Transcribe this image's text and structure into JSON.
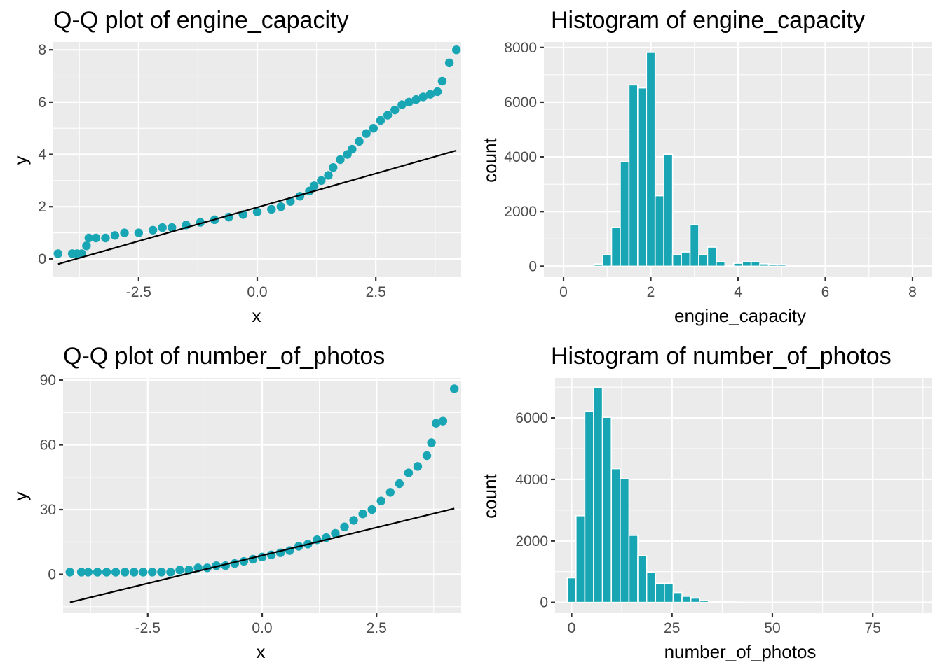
{
  "colors": {
    "points": "#18a5b4",
    "bars_fill": "#18a5b4",
    "bars_outline": "#ffffff",
    "ref_line": "#000000",
    "panel_bg": "#ebebeb",
    "grid": "#ffffff"
  },
  "chart_data": [
    {
      "id": "qq_engine",
      "type": "scatter",
      "title": "Q-Q plot of engine_capacity",
      "xlabel": "x",
      "ylabel": "y",
      "xlim": [
        -4.3,
        4.3
      ],
      "ylim": [
        -0.7,
        8.3
      ],
      "xticks": [
        -2.5,
        0.0,
        2.5
      ],
      "xtick_labels": [
        "-2.5",
        "0.0",
        "2.5"
      ],
      "yticks": [
        0,
        2,
        4,
        6,
        8
      ],
      "ytick_labels": [
        "0",
        "2",
        "4",
        "6",
        "8"
      ],
      "grid": true,
      "points": [
        [
          -4.2,
          0.2
        ],
        [
          -3.9,
          0.2
        ],
        [
          -3.8,
          0.2
        ],
        [
          -3.7,
          0.2
        ],
        [
          -3.6,
          0.5
        ],
        [
          -3.55,
          0.8
        ],
        [
          -3.4,
          0.8
        ],
        [
          -3.2,
          0.8
        ],
        [
          -3.0,
          0.9
        ],
        [
          -2.8,
          1.0
        ],
        [
          -2.5,
          1.0
        ],
        [
          -2.2,
          1.1
        ],
        [
          -2.0,
          1.2
        ],
        [
          -1.8,
          1.2
        ],
        [
          -1.5,
          1.3
        ],
        [
          -1.2,
          1.4
        ],
        [
          -0.9,
          1.5
        ],
        [
          -0.6,
          1.6
        ],
        [
          -0.3,
          1.7
        ],
        [
          0.0,
          1.8
        ],
        [
          0.3,
          1.9
        ],
        [
          0.5,
          2.0
        ],
        [
          0.7,
          2.2
        ],
        [
          0.9,
          2.4
        ],
        [
          1.1,
          2.6
        ],
        [
          1.2,
          2.8
        ],
        [
          1.35,
          3.0
        ],
        [
          1.5,
          3.2
        ],
        [
          1.6,
          3.5
        ],
        [
          1.75,
          3.8
        ],
        [
          1.9,
          4.0
        ],
        [
          2.0,
          4.2
        ],
        [
          2.15,
          4.5
        ],
        [
          2.3,
          4.8
        ],
        [
          2.45,
          5.0
        ],
        [
          2.6,
          5.3
        ],
        [
          2.75,
          5.5
        ],
        [
          2.9,
          5.7
        ],
        [
          3.05,
          5.9
        ],
        [
          3.2,
          6.0
        ],
        [
          3.35,
          6.1
        ],
        [
          3.5,
          6.2
        ],
        [
          3.65,
          6.3
        ],
        [
          3.8,
          6.4
        ],
        [
          3.9,
          6.8
        ],
        [
          4.05,
          7.5
        ],
        [
          4.2,
          8.0
        ]
      ],
      "ref_line": [
        [
          -4.2,
          -0.2
        ],
        [
          4.2,
          4.15
        ]
      ]
    },
    {
      "id": "hist_engine",
      "type": "bar",
      "title": "Histogram of engine_capacity",
      "xlabel": "engine_capacity",
      "ylabel": "count",
      "xlim": [
        -0.45,
        8.45
      ],
      "ylim": [
        -400,
        8200
      ],
      "xticks": [
        0,
        2,
        4,
        6,
        8
      ],
      "xtick_labels": [
        "0",
        "2",
        "4",
        "6",
        "8"
      ],
      "yticks": [
        0,
        2000,
        4000,
        6000,
        8000
      ],
      "ytick_labels": [
        "0",
        "2000",
        "4000",
        "6000",
        "8000"
      ],
      "grid": true,
      "bin_width": 0.2,
      "bin_centers": [
        0.0,
        0.2,
        0.4,
        0.6,
        0.8,
        1.0,
        1.2,
        1.4,
        1.6,
        1.8,
        2.0,
        2.2,
        2.4,
        2.6,
        2.8,
        3.0,
        3.2,
        3.4,
        3.6,
        3.8,
        4.0,
        4.2,
        4.4,
        4.6,
        4.8,
        5.0,
        5.2,
        5.4,
        5.6,
        5.8,
        6.0,
        6.2,
        6.4,
        6.6,
        6.8,
        7.0,
        7.2,
        7.4,
        7.6,
        7.8,
        8.0
      ],
      "counts": [
        5,
        5,
        10,
        15,
        80,
        420,
        1420,
        3820,
        6630,
        6520,
        7820,
        2580,
        4100,
        420,
        520,
        1520,
        420,
        700,
        170,
        20,
        110,
        160,
        160,
        90,
        70,
        60,
        40,
        40,
        30,
        20,
        15,
        10,
        5,
        5,
        5,
        5,
        5,
        5,
        5,
        5,
        5
      ]
    },
    {
      "id": "qq_photos",
      "type": "scatter",
      "title": "Q-Q plot of number_of_photos",
      "xlabel": "x",
      "ylabel": "y",
      "xlim": [
        -4.35,
        4.35
      ],
      "ylim": [
        -18,
        91
      ],
      "xticks": [
        -2.5,
        0.0,
        2.5
      ],
      "xtick_labels": [
        "-2.5",
        "0.0",
        "2.5"
      ],
      "yticks": [
        0,
        30,
        60,
        90
      ],
      "ytick_labels": [
        "0",
        "30",
        "60",
        "90"
      ],
      "grid": true,
      "points": [
        [
          -4.2,
          1
        ],
        [
          -3.95,
          1
        ],
        [
          -3.8,
          1
        ],
        [
          -3.6,
          1
        ],
        [
          -3.4,
          1
        ],
        [
          -3.2,
          1
        ],
        [
          -3.0,
          1
        ],
        [
          -2.8,
          1
        ],
        [
          -2.6,
          1
        ],
        [
          -2.4,
          1
        ],
        [
          -2.2,
          1
        ],
        [
          -2.0,
          1
        ],
        [
          -1.8,
          2
        ],
        [
          -1.6,
          2
        ],
        [
          -1.4,
          3
        ],
        [
          -1.2,
          3
        ],
        [
          -1.0,
          4
        ],
        [
          -0.8,
          4
        ],
        [
          -0.6,
          5
        ],
        [
          -0.4,
          6
        ],
        [
          -0.2,
          7
        ],
        [
          0.0,
          8
        ],
        [
          0.2,
          9
        ],
        [
          0.4,
          10
        ],
        [
          0.6,
          11
        ],
        [
          0.8,
          13
        ],
        [
          1.0,
          14
        ],
        [
          1.2,
          16
        ],
        [
          1.4,
          17
        ],
        [
          1.6,
          19
        ],
        [
          1.8,
          22
        ],
        [
          2.0,
          25
        ],
        [
          2.2,
          28
        ],
        [
          2.4,
          30
        ],
        [
          2.6,
          34
        ],
        [
          2.8,
          38
        ],
        [
          3.0,
          42
        ],
        [
          3.2,
          47
        ],
        [
          3.4,
          50
        ],
        [
          3.6,
          55
        ],
        [
          3.7,
          61
        ],
        [
          3.8,
          70
        ],
        [
          3.95,
          71
        ],
        [
          4.2,
          86
        ]
      ],
      "ref_line": [
        [
          -4.2,
          -13
        ],
        [
          4.2,
          30.5
        ]
      ]
    },
    {
      "id": "hist_photos",
      "type": "bar",
      "title": "Histogram of number_of_photos",
      "xlabel": "number_of_photos",
      "ylabel": "count",
      "xlim": [
        -4.1,
        89.8
      ],
      "ylim": [
        -350,
        7300
      ],
      "xticks": [
        0,
        25,
        50,
        75
      ],
      "xtick_labels": [
        "0",
        "25",
        "50",
        "75"
      ],
      "yticks": [
        0,
        2000,
        4000,
        6000
      ],
      "ytick_labels": [
        "0",
        "2000",
        "4000",
        "6000"
      ],
      "grid": true,
      "bin_width": 2.2,
      "bin_centers": [
        0.0,
        2.2,
        4.4,
        6.6,
        8.8,
        11.0,
        13.2,
        15.4,
        17.6,
        19.8,
        22.0,
        24.2,
        26.4,
        28.6,
        30.8,
        33.0,
        35.2,
        37.4,
        39.6,
        41.8,
        44.0,
        46.2,
        48.4,
        50.6,
        52.8,
        55.0,
        57.2,
        59.4,
        61.6,
        63.8,
        66.0,
        68.2,
        70.4,
        72.6,
        74.8,
        77.0,
        79.2,
        81.4,
        83.6,
        85.8
      ],
      "counts": [
        800,
        2820,
        6220,
        7000,
        6020,
        4350,
        4020,
        2180,
        1520,
        980,
        620,
        620,
        320,
        200,
        140,
        60,
        30,
        20,
        15,
        10,
        5,
        5,
        5,
        5,
        5,
        5,
        5,
        5,
        5,
        5,
        5,
        5,
        5,
        5,
        5,
        5,
        5,
        5,
        5,
        5
      ]
    }
  ]
}
